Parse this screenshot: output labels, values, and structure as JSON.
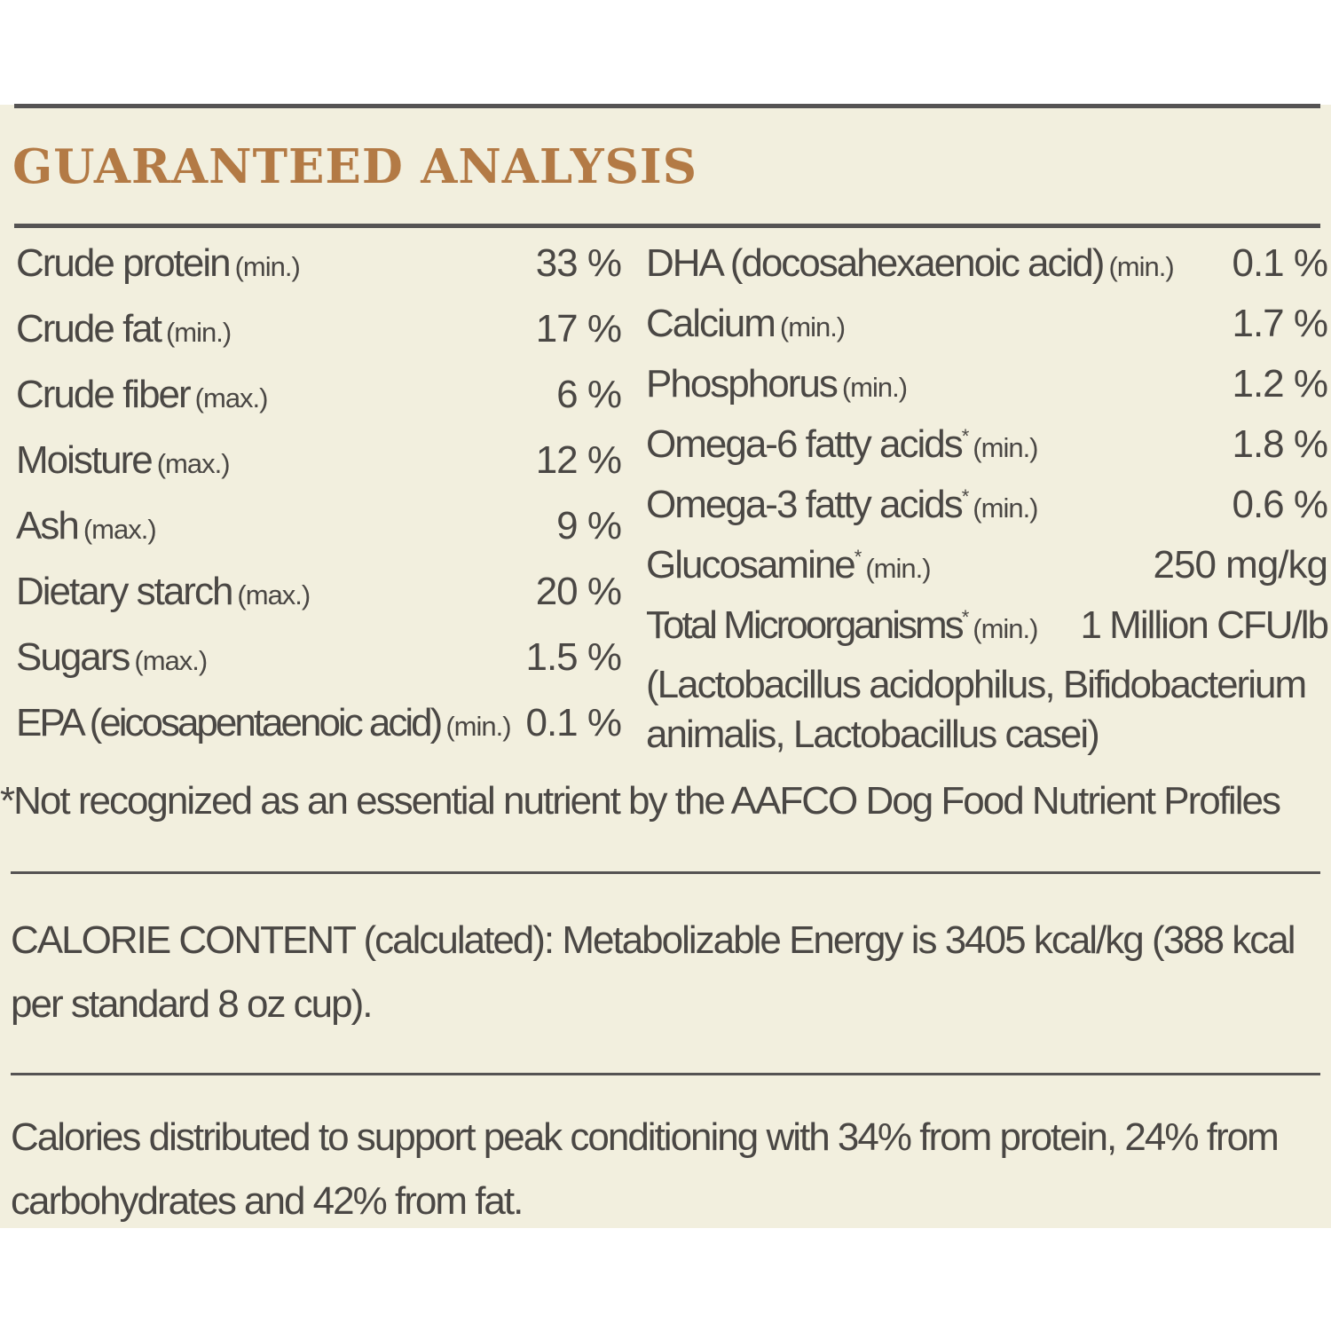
{
  "title": "GUARANTEED ANALYSIS",
  "left_items": [
    {
      "name": "Crude protein",
      "qualifier": "(min.)",
      "value": "33 %"
    },
    {
      "name": "Crude fat",
      "qualifier": "(min.)",
      "value": "17 %"
    },
    {
      "name": "Crude fiber",
      "qualifier": "(max.)",
      "value": "6 %"
    },
    {
      "name": "Moisture",
      "qualifier": "(max.)",
      "value": "12 %"
    },
    {
      "name": "Ash",
      "qualifier": "(max.)",
      "value": "9 %"
    },
    {
      "name": "Dietary starch",
      "qualifier": "(max.)",
      "value": "20 %"
    },
    {
      "name": "Sugars",
      "qualifier": "(max.)",
      "value": "1.5 %"
    },
    {
      "name": "EPA (eicosapentaenoic acid)",
      "qualifier": "(min.)",
      "value": "0.1 %"
    }
  ],
  "right_items": [
    {
      "name": "DHA (docosahexaenoic acid)",
      "mark": "",
      "qualifier": "(min.)",
      "value": "0.1 %"
    },
    {
      "name": "Calcium",
      "mark": "",
      "qualifier": "(min.)",
      "value": "1.7 %"
    },
    {
      "name": "Phosphorus",
      "mark": "",
      "qualifier": "(min.)",
      "value": "1.2 %"
    },
    {
      "name": "Omega-6 fatty acids",
      "mark": "*",
      "qualifier": "(min.)",
      "value": "1.8 %"
    },
    {
      "name": "Omega-3 fatty acids",
      "mark": "*",
      "qualifier": "(min.)",
      "value": "0.6 %"
    },
    {
      "name": "Glucosamine",
      "mark": "*",
      "qualifier": "(min.)",
      "value": "250 mg/kg"
    },
    {
      "name": "Total Microorganisms",
      "mark": "*",
      "qualifier": "(min.)",
      "value": "1 Million CFU/lb"
    }
  ],
  "microorganisms_note": "(Lactobacillus acidophilus, Bifidobacterium animalis, Lactobacillus casei)",
  "footnote": "*Not recognized as an essential nutrient by the AAFCO Dog Food Nutrient Profiles",
  "calorie_content": "CALORIE CONTENT (calculated): Metabolizable Energy is 3405 kcal/kg (388 kcal per standard 8 oz cup).",
  "calorie_distribution": "Calories distributed to support peak conditioning with 34% from protein, 24% from carbohydrates and 42% from fat.",
  "colors": {
    "title": "#b37a45",
    "background": "#f2efde",
    "text": "#4a4744",
    "rule": "#555353"
  }
}
